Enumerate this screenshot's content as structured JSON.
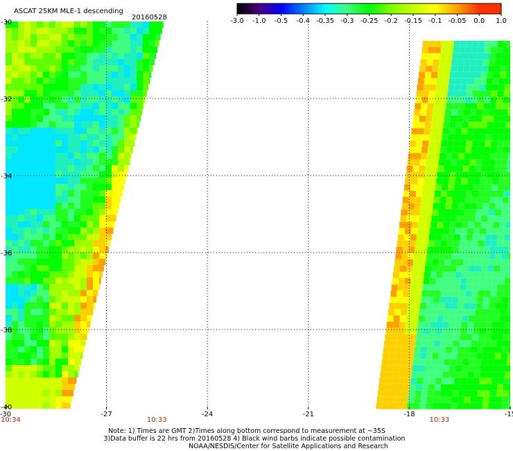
{
  "chart_data": {
    "type": "heatmap",
    "title": "ASCAT 25KM MLE-1 descending",
    "date": "20160528",
    "xlabel": "",
    "ylabel": "",
    "xlim": [
      -30,
      -15
    ],
    "ylim": [
      -40,
      -30
    ],
    "x_ticks": [
      "-30",
      "-27",
      "-24",
      "-21",
      "-18",
      "-15"
    ],
    "y_ticks": [
      "-30",
      "-32",
      "-34",
      "-36",
      "-38",
      "-40"
    ],
    "grid": true,
    "colorbar": {
      "labels": [
        "-3.0",
        "-1.0",
        "-0.5",
        "-0.4",
        "-0.35",
        "-0.3",
        "-0.25",
        "-0.2",
        "-0.15",
        "-0.1",
        "-0.05",
        "0.0",
        "1.0"
      ],
      "colors": [
        "#000000",
        "#4b0082",
        "#0000ff",
        "#0080ff",
        "#00ffff",
        "#40ff80",
        "#00ff00",
        "#80ff00",
        "#c8ff00",
        "#ffff00",
        "#ffa000",
        "#ff3000"
      ]
    },
    "swath_times": [
      {
        "time": "10:34",
        "x": -30
      },
      {
        "time": "10:33",
        "x": -25.8
      },
      {
        "time": "10:33",
        "x": -17.4
      }
    ],
    "swaths": [
      {
        "name": "west",
        "lat_top": -30,
        "lat_bottom": -40,
        "west_edge_lon": -30,
        "east_edge_lon_top": -25.3,
        "east_edge_lon_bottom": -28.1,
        "dominant_range": [
          -0.25,
          -0.1
        ]
      },
      {
        "name": "east",
        "lat_top": -30.5,
        "lat_bottom": -40,
        "west_edge_lon_top": -17.6,
        "west_edge_lon_bottom": -19.0,
        "east_edge_lon": -15,
        "dominant_range": [
          -0.2,
          -0.15
        ]
      }
    ]
  },
  "notes": [
    "Note: 1) Times are GMT 2)Times along bottom correspond to measurement at ~35S",
    "3)Data buffer is 22 hrs from 20160528 4) Black wind barbs indicate possible contamination",
    "NOAA/NESDIS/Center for Satellite Applications and Research"
  ]
}
